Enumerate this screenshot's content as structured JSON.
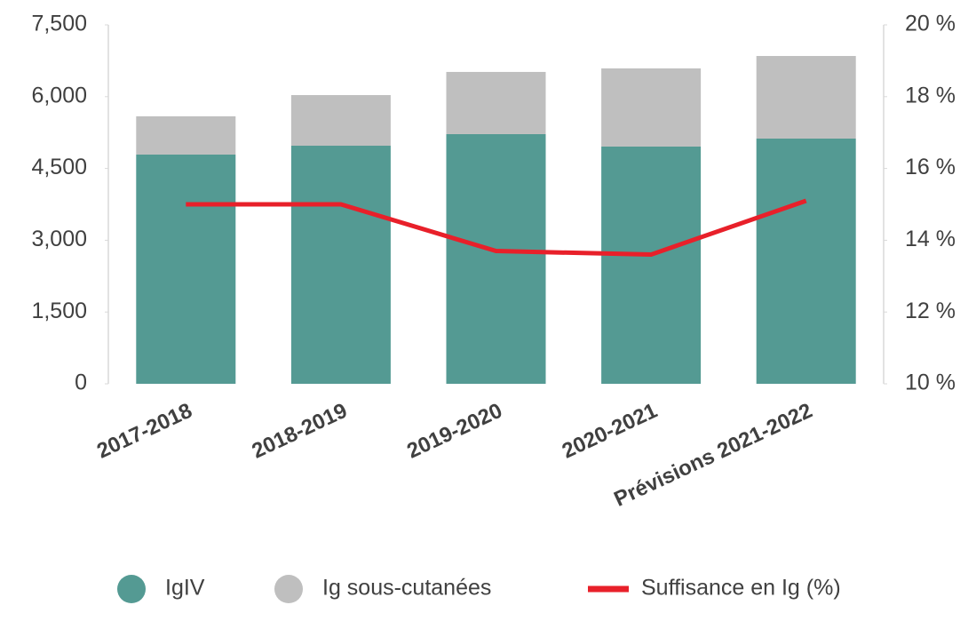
{
  "chart_data": {
    "type": "bar",
    "categories": [
      "2017-2018",
      "2018-2019",
      "2019-2020",
      "2020-2021",
      "Prévisions 2021-2022"
    ],
    "stacked": true,
    "series": [
      {
        "name": "IgIV",
        "color": "#549a93",
        "values": [
          4790,
          4975,
          5217,
          4957,
          5124
        ]
      },
      {
        "name": "Ig sous-cutanées",
        "color": "#bfbfbf",
        "values": [
          800,
          1058,
          1300,
          1633,
          1726
        ]
      },
      {
        "name": "Suffisance en Ig (%)",
        "color": "#e8202a",
        "type": "line",
        "axis": "y2",
        "values": [
          15.0,
          15.0,
          13.7,
          13.6,
          15.1
        ]
      }
    ],
    "ylim": [
      0,
      7500
    ],
    "yticks": [
      0,
      {
        "value": 1500,
        "label": "1,500"
      },
      {
        "value": 3000,
        "label": "3,000"
      },
      {
        "value": 4500,
        "label": "4,500"
      },
      {
        "value": 6000,
        "label": "6,000"
      },
      {
        "value": 7500,
        "label": "7,500"
      }
    ],
    "y2lim": [
      10,
      20
    ],
    "y2ticks": [
      {
        "value": 10,
        "label": "10 %"
      },
      {
        "value": 12,
        "label": "12 %"
      },
      {
        "value": 14,
        "label": "14 %"
      },
      {
        "value": 16,
        "label": "16 %"
      },
      {
        "value": 18,
        "label": "18 %"
      },
      {
        "value": 20,
        "label": "20 %"
      }
    ],
    "legend": "bottom"
  }
}
